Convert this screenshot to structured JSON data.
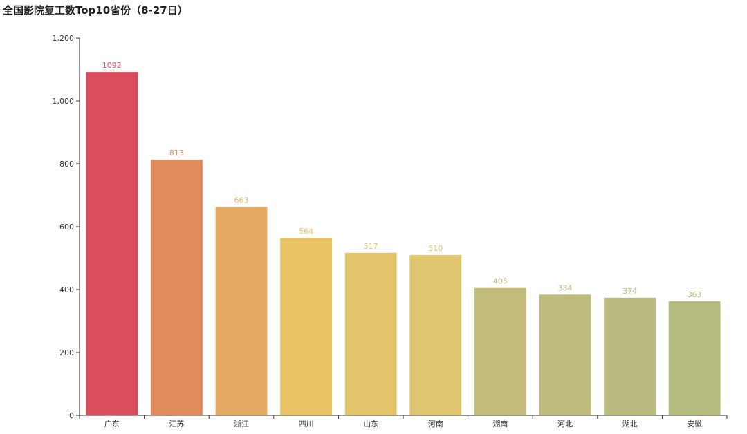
{
  "chart_data": {
    "type": "bar",
    "title": "全国影院复工数Top10省份（8-27日）",
    "categories": [
      "广东",
      "江苏",
      "浙江",
      "四川",
      "山东",
      "河南",
      "湖南",
      "河北",
      "湖北",
      "安徽"
    ],
    "values": [
      1092,
      813,
      663,
      564,
      517,
      510,
      405,
      384,
      374,
      363
    ],
    "value_labels": [
      "1092",
      "813",
      "663",
      "564",
      "517",
      "510",
      "405",
      "384",
      "374",
      "363"
    ],
    "colors": [
      "#d94d5d",
      "#e28c5e",
      "#e6ab63",
      "#e8c263",
      "#e2c46b",
      "#dfc56d",
      "#c4bd7c",
      "#bebb7c",
      "#b9ba7d",
      "#b5bb7f"
    ],
    "yticks": [
      0,
      200,
      400,
      600,
      800,
      1000,
      1200
    ],
    "ytick_labels": [
      "0",
      "200",
      "400",
      "600",
      "800",
      "1,000",
      "1,200"
    ],
    "ylim": [
      0,
      1200
    ],
    "xlabel": "",
    "ylabel": "",
    "grid": false,
    "legend": "none"
  }
}
